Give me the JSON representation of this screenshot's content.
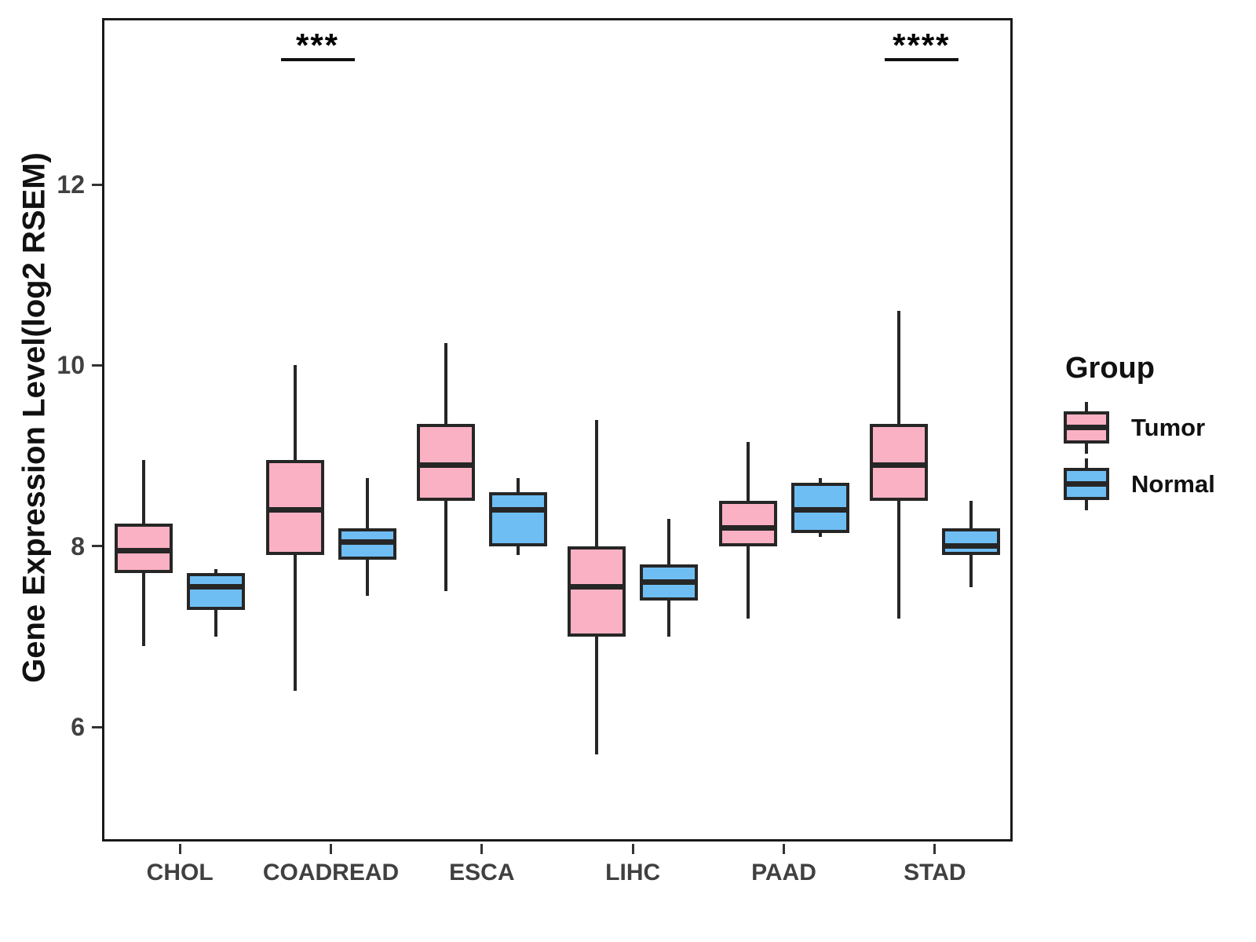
{
  "figure": {
    "y_axis_title": "Gene Expression Level(log2 RSEM)",
    "legend_title": "Group"
  },
  "colors": {
    "tumor_fill": "#FAB1C3",
    "normal_fill": "#6FBEF3",
    "box_stroke": "#262626",
    "axis_text": "#404040",
    "title_text": "#111111"
  },
  "chart_data": {
    "type": "boxplot",
    "title": "",
    "xlabel": "",
    "ylabel": "Gene Expression Level(log2 RSEM)",
    "categories": [
      "CHOL",
      "COADREAD",
      "ESCA",
      "LIHC",
      "PAAD",
      "STAD"
    ],
    "y_ticks": [
      6,
      8,
      10,
      12
    ],
    "ylim": [
      4.7,
      13.8
    ],
    "grid": false,
    "legend": {
      "title": "Group",
      "position": "right",
      "entries": [
        "Tumor",
        "Normal"
      ]
    },
    "groups": [
      {
        "name": "Tumor",
        "fill": "#FAB1C3"
      },
      {
        "name": "Normal",
        "fill": "#6FBEF3"
      }
    ],
    "series": [
      {
        "name": "Tumor",
        "boxes": [
          {
            "category": "CHOL",
            "min": 6.9,
            "q1": 7.7,
            "median": 7.95,
            "q3": 8.25,
            "max": 8.95
          },
          {
            "category": "COADREAD",
            "min": 6.4,
            "q1": 7.9,
            "median": 8.4,
            "q3": 8.95,
            "max": 10.0
          },
          {
            "category": "ESCA",
            "min": 7.5,
            "q1": 8.5,
            "median": 8.9,
            "q3": 9.35,
            "max": 10.25
          },
          {
            "category": "LIHC",
            "min": 5.7,
            "q1": 7.0,
            "median": 7.55,
            "q3": 8.0,
            "max": 9.4
          },
          {
            "category": "PAAD",
            "min": 7.2,
            "q1": 8.0,
            "median": 8.2,
            "q3": 8.5,
            "max": 9.15
          },
          {
            "category": "STAD",
            "min": 7.2,
            "q1": 8.5,
            "median": 8.9,
            "q3": 9.35,
            "max": 10.6
          }
        ]
      },
      {
        "name": "Normal",
        "boxes": [
          {
            "category": "CHOL",
            "min": 7.0,
            "q1": 7.3,
            "median": 7.55,
            "q3": 7.7,
            "max": 7.75
          },
          {
            "category": "COADREAD",
            "min": 7.45,
            "q1": 7.85,
            "median": 8.05,
            "q3": 8.2,
            "max": 8.75
          },
          {
            "category": "ESCA",
            "min": 7.9,
            "q1": 8.0,
            "median": 8.4,
            "q3": 8.6,
            "max": 8.75
          },
          {
            "category": "LIHC",
            "min": 7.0,
            "q1": 7.4,
            "median": 7.6,
            "q3": 7.8,
            "max": 8.3
          },
          {
            "category": "PAAD",
            "min": 8.1,
            "q1": 8.15,
            "median": 8.4,
            "q3": 8.7,
            "max": 8.75
          },
          {
            "category": "STAD",
            "min": 7.55,
            "q1": 7.9,
            "median": 8.0,
            "q3": 8.2,
            "max": 8.5
          }
        ]
      }
    ],
    "annotations": [
      {
        "category": "COADREAD",
        "label": "***"
      },
      {
        "category": "STAD",
        "label": "****"
      }
    ]
  }
}
